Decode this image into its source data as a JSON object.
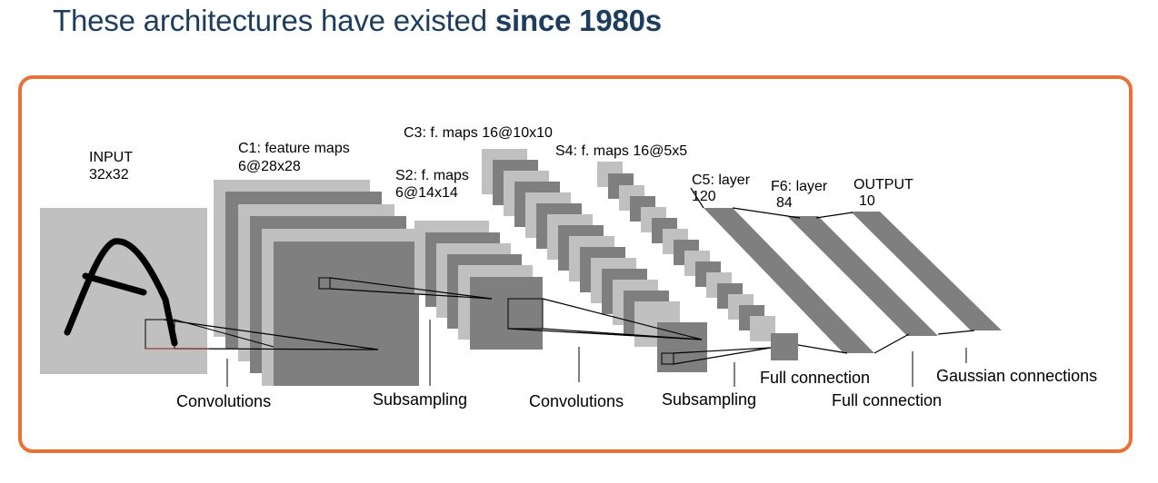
{
  "title": {
    "prefix": "These architectures have existed ",
    "emphasis": "since 1980s"
  },
  "diagram": {
    "layers": {
      "input": {
        "line1": "INPUT",
        "line2": "32x32"
      },
      "c1": {
        "line1": "C1: feature maps",
        "line2": "6@28x28"
      },
      "s2": {
        "line1": "S2: f. maps",
        "line2": "6@14x14"
      },
      "c3": {
        "line1": "C3: f. maps 16@10x10"
      },
      "s4": {
        "line1": "S4: f. maps 16@5x5"
      },
      "c5": {
        "line1": "C5: layer",
        "line2": "120"
      },
      "f6": {
        "line1": "F6: layer",
        "line2": "84"
      },
      "output": {
        "line1": "OUTPUT",
        "line2": "10"
      }
    },
    "operations": [
      "Convolutions",
      "Subsampling",
      "Convolutions",
      "Subsampling",
      "Full connection",
      "Full connection",
      "Gaussian connections"
    ]
  }
}
